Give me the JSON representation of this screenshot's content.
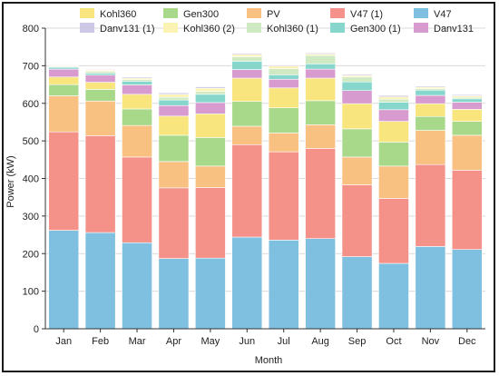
{
  "chart_data": {
    "type": "bar",
    "stacked": true,
    "title": "",
    "xlabel": "Month",
    "ylabel": "Power (kW)",
    "ylim": [
      0,
      800
    ],
    "yticks": [
      0,
      100,
      200,
      300,
      400,
      500,
      600,
      700,
      800
    ],
    "grid": true,
    "legend_position": "top",
    "categories": [
      "Jan",
      "Feb",
      "Mar",
      "Apr",
      "May",
      "Jun",
      "Jul",
      "Aug",
      "Sep",
      "Oct",
      "Nov",
      "Dec"
    ],
    "series": [
      {
        "name": "V47",
        "color": "#7fbfdf",
        "values": [
          262,
          256,
          229,
          187,
          188,
          244,
          236,
          240,
          192,
          174,
          219,
          211
        ]
      },
      {
        "name": "V47 (1)",
        "color": "#f4928a",
        "values": [
          262,
          258,
          228,
          188,
          188,
          246,
          235,
          240,
          191,
          173,
          218,
          211
        ]
      },
      {
        "name": "PV",
        "color": "#f8c181",
        "values": [
          96,
          92,
          84,
          70,
          57,
          49,
          50,
          63,
          74,
          86,
          91,
          93
        ]
      },
      {
        "name": "Gen300",
        "color": "#a8d98a",
        "values": [
          30,
          31,
          44,
          70,
          76,
          66,
          67,
          64,
          75,
          64,
          37,
          37
        ]
      },
      {
        "name": "Kohl360",
        "color": "#f8e57d",
        "values": [
          20,
          19,
          39,
          51,
          63,
          62,
          53,
          60,
          67,
          55,
          34,
          32
        ]
      },
      {
        "name": "Danv131",
        "color": "#d89bd0",
        "values": [
          21,
          19,
          25,
          28,
          30,
          23,
          23,
          24,
          35,
          31,
          22,
          19
        ]
      },
      {
        "name": "Gen300 (1)",
        "color": "#86d6cc",
        "values": [
          5,
          5,
          10,
          15,
          22,
          22,
          12,
          14,
          23,
          20,
          14,
          9
        ]
      },
      {
        "name": "Kohl360 (1)",
        "color": "#cfeac2",
        "values": [
          2,
          5,
          4,
          7,
          8,
          12,
          16,
          22,
          13,
          8,
          4,
          4
        ]
      },
      {
        "name": "Kohl360 (2)",
        "color": "#fbf3b4",
        "values": [
          2,
          3,
          4,
          8,
          8,
          6,
          7,
          4,
          4,
          6,
          4,
          4
        ]
      },
      {
        "name": "Danv131 (1)",
        "color": "#ccc8e6",
        "values": [
          2,
          2,
          3,
          4,
          4,
          3,
          3,
          3,
          3,
          4,
          3,
          3
        ]
      }
    ],
    "legend_rows": [
      [
        "Kohl360",
        "Gen300",
        "PV",
        "V47 (1)",
        "V47"
      ],
      [
        "Danv131 (1)",
        "Kohl360 (2)",
        "Kohl360 (1)",
        "Gen300 (1)",
        "Danv131"
      ]
    ]
  }
}
